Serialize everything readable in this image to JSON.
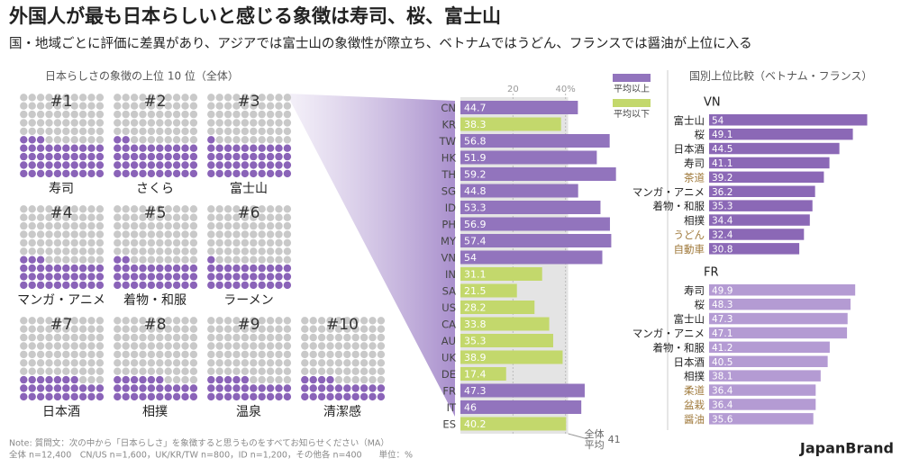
{
  "title": "外国人が最も日本らしいと感じる象徴は寿司、桜、富士山",
  "subtitle": "国・地域ごとに評価に差異があり、アジアでは富士山の象徴性が際立ち、ベトナムではうどん、フランスでは醤油が上位に入る",
  "section_title": "国別上位比較（ベトナム・フランス）",
  "note": [
    "Note: 質問文：次の中から「日本らしさ」を象徴すると思うものをすべてお知らせください（MA）",
    "全体 n=12,400　CN/US n=1,600，UK/KR/TW n=800，ID n=1,200，その他各 n=400　　単位：%"
  ],
  "brand": "JapanBrand",
  "chart_data": [
    {
      "type": "waffle",
      "title": "日本らしさの象徴の上位 10 位（全体）",
      "ranks": [
        "#1",
        "#2",
        "#3",
        "#4",
        "#5",
        "#6",
        "#7",
        "#8",
        "#9",
        "#10"
      ],
      "categories": [
        "寿司",
        "さくら",
        "富士山",
        "マンガ・アニメ",
        "着物・和服",
        "ラーメン",
        "日本酒",
        "相撲",
        "温泉",
        "清潔感"
      ],
      "values": [
        43,
        42,
        41,
        33,
        32,
        31,
        27,
        26,
        25,
        24
      ],
      "color": "#8a63b8",
      "empty_color": "#c9c9c9"
    },
    {
      "type": "bar",
      "categories": [
        "CN",
        "KR",
        "TW",
        "HK",
        "TH",
        "SG",
        "ID",
        "PH",
        "MY",
        "VN",
        "IN",
        "SA",
        "US",
        "CA",
        "AU",
        "UK",
        "DE",
        "FR",
        "IT",
        "ES"
      ],
      "values": [
        44.7,
        38.3,
        56.8,
        51.9,
        59.2,
        44.8,
        53.3,
        56.9,
        57.4,
        54,
        31.1,
        21.5,
        28.2,
        33.8,
        35.3,
        38.9,
        17.4,
        47.3,
        46,
        40.2
      ],
      "legend": [
        {
          "name": "平均以上",
          "color": "#9274bd"
        },
        {
          "name": "平均以下",
          "color": "#c3d86c"
        }
      ],
      "average": 41,
      "average_label": [
        "全体",
        "平均"
      ],
      "xlim": [
        0,
        60
      ],
      "xticks": [
        20,
        {
          "value": 40,
          "label": "40%"
        }
      ],
      "grid": true
    },
    {
      "type": "bar",
      "title": "VN",
      "categories": [
        "富士山",
        "桜",
        "日本酒",
        "寿司",
        "茶道",
        "マンガ・アニメ",
        "着物・和服",
        "相撲",
        "うどん",
        "自動車"
      ],
      "values": [
        54,
        49.1,
        44.5,
        41.1,
        39.2,
        36.2,
        35.3,
        34.4,
        32.4,
        30.8
      ],
      "label_colors": [
        "#222",
        "#222",
        "#222",
        "#222",
        "#a07a3c",
        "#222",
        "#222",
        "#222",
        "#a07a3c",
        "#a07a3c"
      ],
      "color": "#8b68b6",
      "xlim": [
        0,
        60
      ]
    },
    {
      "type": "bar",
      "title": "FR",
      "categories": [
        "寿司",
        "桜",
        "富士山",
        "マンガ・アニメ",
        "着物・和服",
        "日本酒",
        "相撲",
        "柔道",
        "盆栽",
        "醤油"
      ],
      "values": [
        49.9,
        48.3,
        47.3,
        47.1,
        41.2,
        40.5,
        38.1,
        36.4,
        36.4,
        35.6
      ],
      "label_colors": [
        "#222",
        "#222",
        "#222",
        "#222",
        "#222",
        "#222",
        "#222",
        "#a07a3c",
        "#a07a3c",
        "#a07a3c"
      ],
      "color": "#b49bd3",
      "xlim": [
        0,
        60
      ]
    }
  ]
}
